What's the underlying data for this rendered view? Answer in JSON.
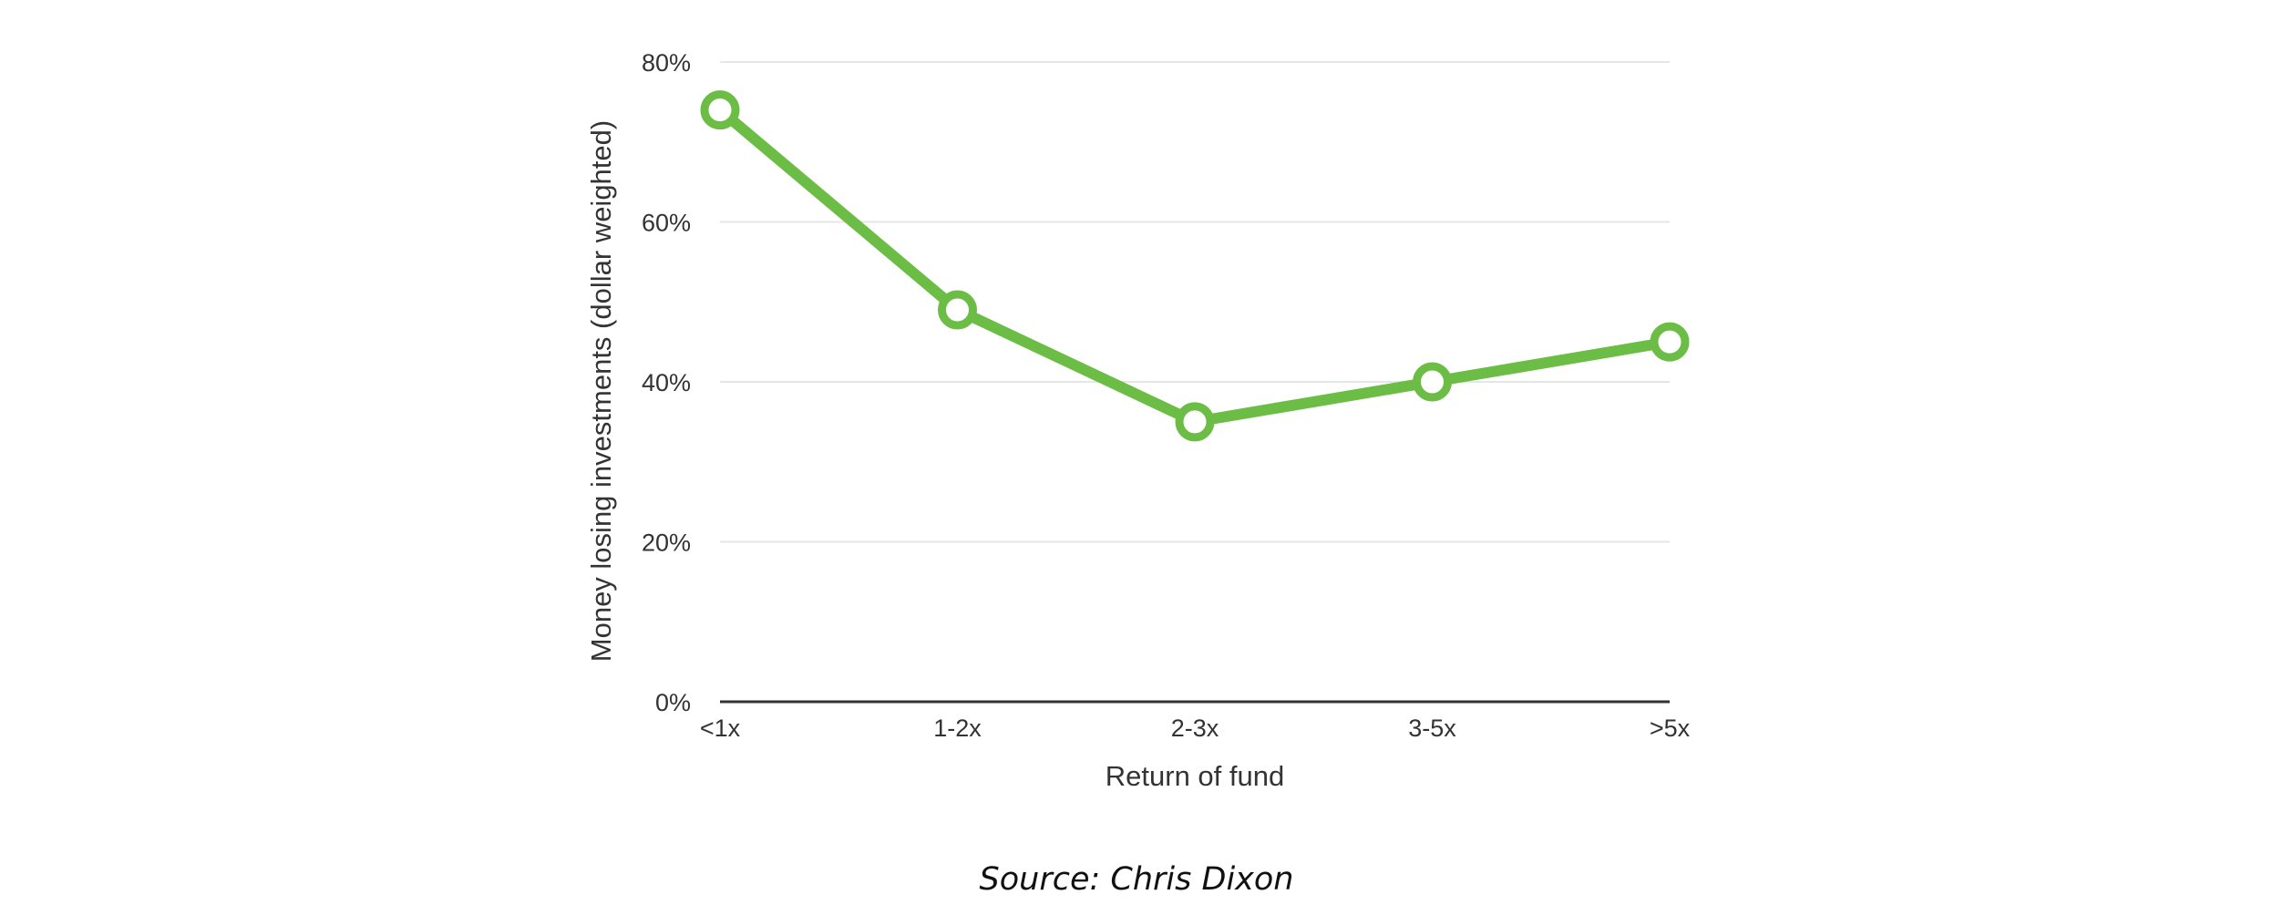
{
  "chart_data": {
    "type": "line",
    "categories": [
      "<1x",
      "1-2x",
      "2-3x",
      "3-5x",
      ">5x"
    ],
    "series": [
      {
        "values": [
          74,
          49,
          35,
          40,
          45
        ],
        "color": "#6cbd45"
      }
    ],
    "xlabel": "Return of fund",
    "ylabel": "Money losing investments (dollar weighted)",
    "ylim": [
      0,
      80
    ],
    "yticks": [
      0,
      20,
      40,
      60,
      80
    ],
    "ytick_labels": [
      "0%",
      "20%",
      "40%",
      "60%",
      "80%"
    ],
    "grid": true
  },
  "source": "Source: Chris Dixon"
}
